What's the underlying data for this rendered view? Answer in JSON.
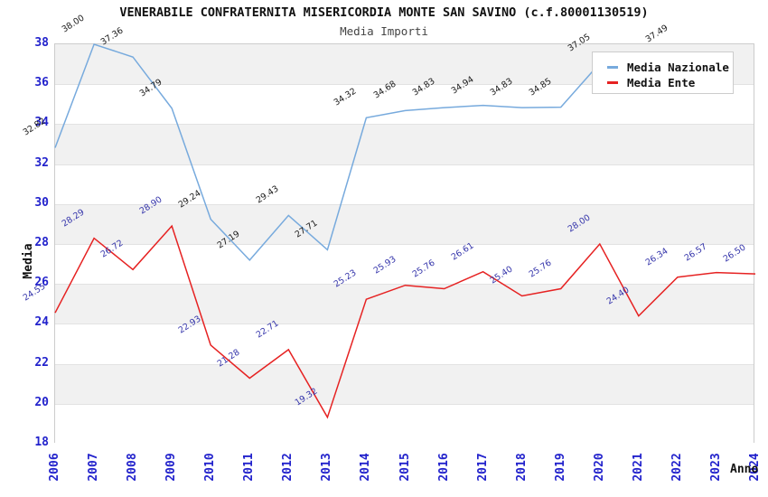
{
  "page": {
    "title": "VENERABILE CONFRATERNITA MISERICORDIA MONTE SAN SAVINO (c.f.80001130519)",
    "subtitle": "Media Importi"
  },
  "axes": {
    "x_label": "Anno",
    "y_label": "Media",
    "x_ticks": [
      "2006",
      "2007",
      "2008",
      "2009",
      "2010",
      "2011",
      "2012",
      "2013",
      "2014",
      "2015",
      "2016",
      "2017",
      "2018",
      "2019",
      "2020",
      "2021",
      "2022",
      "2023",
      "2024"
    ],
    "y_ticks": [
      "18",
      "20",
      "22",
      "24",
      "26",
      "28",
      "30",
      "32",
      "34",
      "36",
      "38"
    ],
    "tick_color": "#2222cc"
  },
  "legend": {
    "items": [
      {
        "label": "Media Nazionale",
        "color": "#77aadd"
      },
      {
        "label": "Media Ente",
        "color": "#e62222"
      }
    ]
  },
  "chart_data": {
    "type": "line",
    "x": [
      2006,
      2007,
      2008,
      2009,
      2010,
      2011,
      2012,
      2013,
      2014,
      2015,
      2016,
      2017,
      2018,
      2019,
      2020,
      2021,
      2022,
      2023,
      2024
    ],
    "series": [
      {
        "name": "Media Nazionale",
        "color": "#77aadd",
        "label_color": "#1a1a1a",
        "values": [
          32.82,
          38.0,
          37.36,
          34.79,
          29.24,
          27.19,
          29.43,
          27.71,
          34.32,
          34.68,
          34.83,
          34.94,
          34.83,
          34.85,
          37.05,
          37.3,
          37.49,
          null,
          null
        ],
        "labels": [
          "32.82",
          "38.00",
          "37.36",
          "34.79",
          "29.24",
          "27.19",
          "29.43",
          "27.71",
          "34.32",
          "34.68",
          "34.83",
          "34.94",
          "34.83",
          "34.85",
          "37.05",
          "",
          "37.49",
          "",
          ""
        ]
      },
      {
        "name": "Media Ente",
        "color": "#e62222",
        "label_color": "#3333aa",
        "values": [
          24.55,
          28.29,
          26.72,
          28.9,
          22.93,
          21.28,
          22.71,
          19.32,
          25.23,
          25.93,
          25.76,
          26.61,
          25.4,
          25.76,
          28.0,
          24.4,
          26.34,
          26.57,
          26.5
        ],
        "labels": [
          "24.55",
          "28.29",
          "26.72",
          "28.90",
          "22.93",
          "21.28",
          "22.71",
          "19.32",
          "25.23",
          "25.93",
          "25.76",
          "26.61",
          "25.40",
          "25.76",
          "28.00",
          "24.40",
          "26.34",
          "26.57",
          "26.50"
        ]
      }
    ],
    "title": "Media Importi",
    "xlabel": "Anno",
    "ylabel": "Media",
    "ylim": [
      18,
      38
    ],
    "y_step": 2,
    "band_fill": "#f1f1f1",
    "grid": "horizontal-bands",
    "legend_position": "top-right"
  }
}
